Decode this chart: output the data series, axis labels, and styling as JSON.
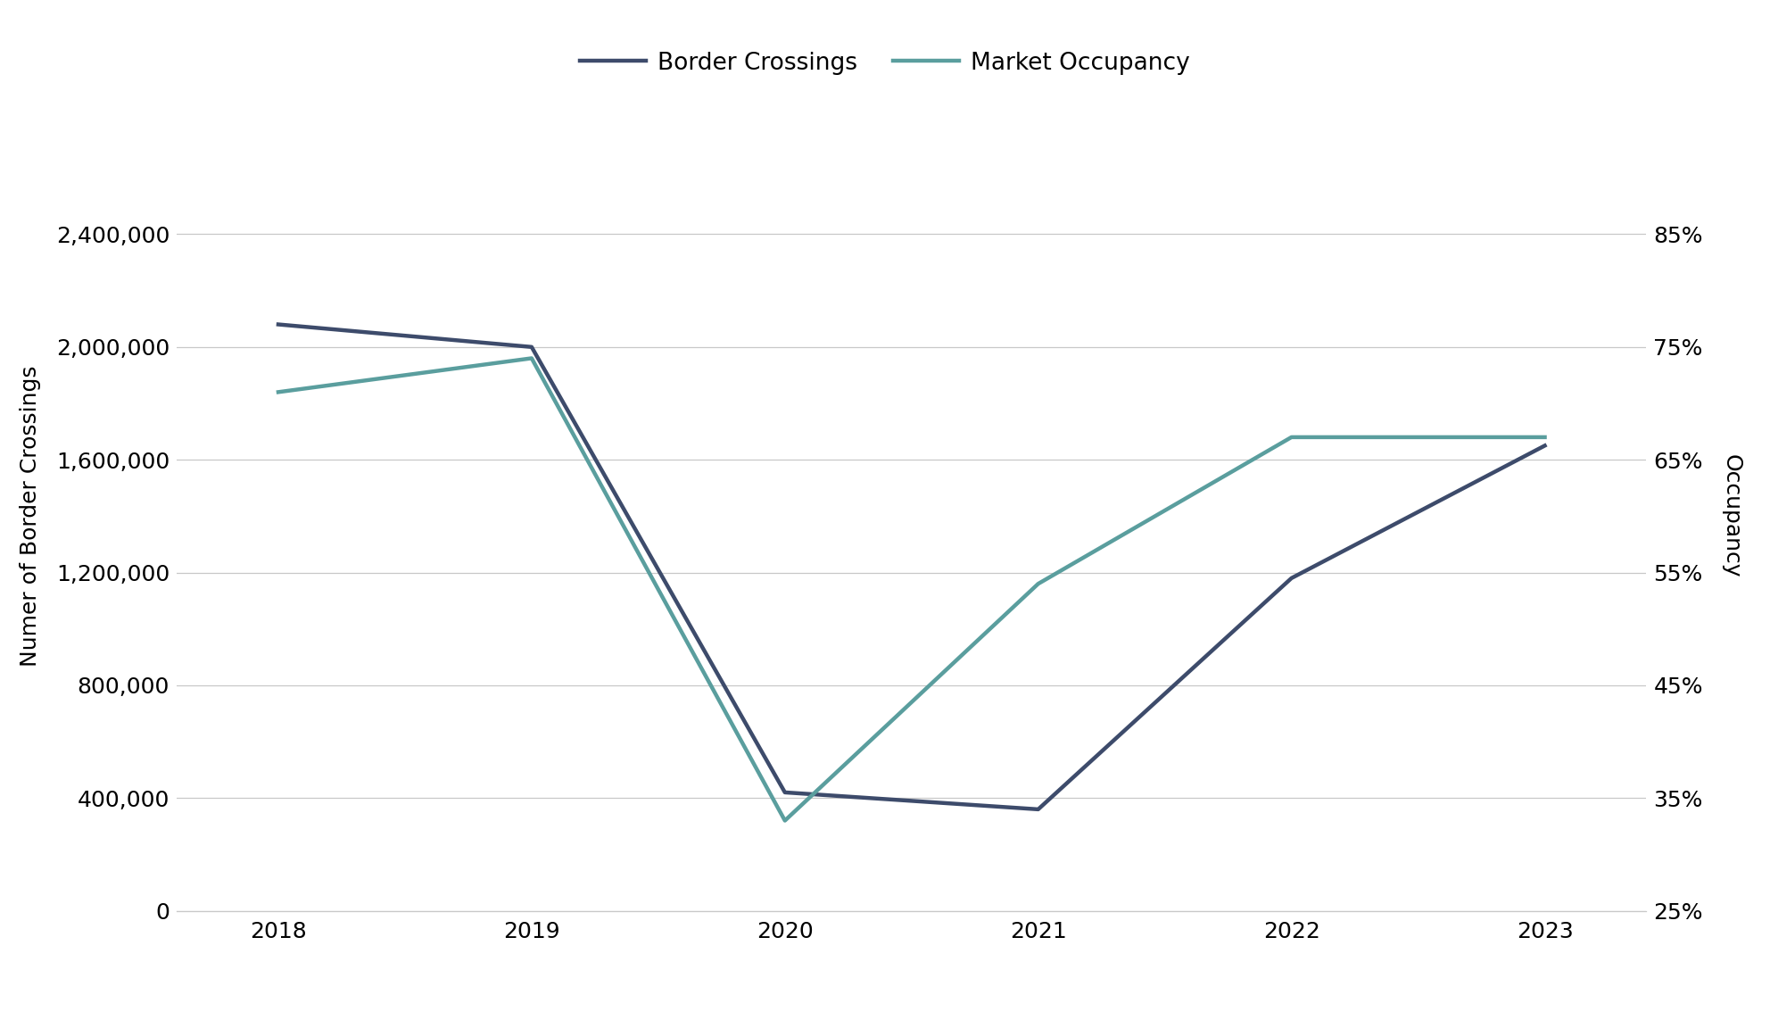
{
  "years": [
    2018,
    2019,
    2020,
    2021,
    2022,
    2023
  ],
  "border_crossings": [
    2080000,
    2000000,
    420000,
    360000,
    1180000,
    1650000
  ],
  "market_occupancy": [
    0.71,
    0.74,
    0.33,
    0.54,
    0.67,
    0.67
  ],
  "border_color": "#3d4b6b",
  "occupancy_color": "#5a9e9e",
  "left_ylim": [
    0,
    2800000
  ],
  "left_yticks": [
    0,
    400000,
    800000,
    1200000,
    1600000,
    2000000,
    2400000
  ],
  "right_ylim": [
    0.25,
    0.95
  ],
  "right_yticks": [
    0.25,
    0.35,
    0.45,
    0.55,
    0.65,
    0.75,
    0.85
  ],
  "left_ylabel": "Numer of Border Crossings",
  "right_ylabel": "Occupancy",
  "legend_border": "Border Crossings",
  "legend_occupancy": "Market Occupancy",
  "line_width": 3.2,
  "background_color": "#ffffff",
  "grid_color": "#c8c8c8",
  "font_color": "#000000",
  "tick_fontsize": 18,
  "label_fontsize": 18,
  "legend_fontsize": 19
}
